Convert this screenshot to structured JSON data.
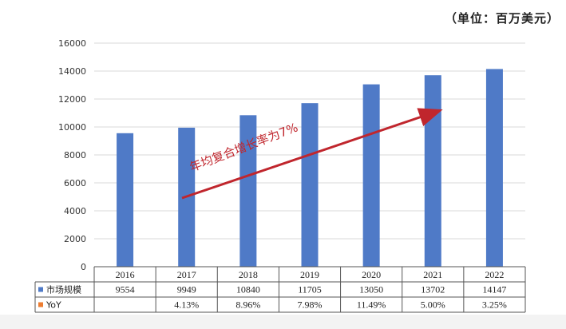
{
  "unit_note": "（单位：百万美元）",
  "annotation": "年均复合增长率为7%",
  "colors": {
    "bar": "#4f7ac7",
    "yoy": "#ed7d31",
    "arrow": "#c0262d",
    "grid": "#d9d9d9"
  },
  "chart_data": {
    "type": "bar",
    "categories": [
      "2016",
      "2017",
      "2018",
      "2019",
      "2020",
      "2021",
      "2022"
    ],
    "ylim": [
      0,
      16000
    ],
    "yticks": [
      0,
      2000,
      4000,
      6000,
      8000,
      10000,
      12000,
      14000,
      16000
    ],
    "grid": true,
    "series": [
      {
        "name": "市场规模",
        "values": [
          9554,
          9949,
          10840,
          11705,
          13050,
          13702,
          14147
        ],
        "labels": [
          "9554",
          "9949",
          "10840",
          "11705",
          "13050",
          "13702",
          "14147"
        ]
      },
      {
        "name": "YoY",
        "labels": [
          "",
          "4.13%",
          "8.96%",
          "7.98%",
          "11.49%",
          "5.00%",
          "3.25%"
        ]
      }
    ]
  }
}
